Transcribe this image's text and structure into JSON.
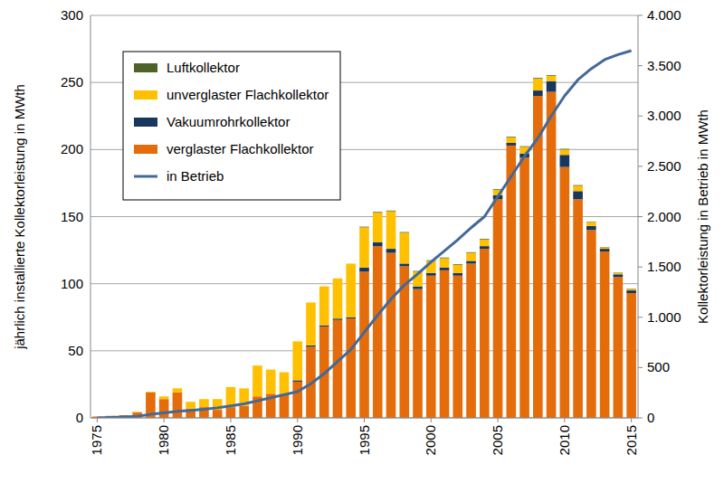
{
  "chart_data": {
    "type": "bar",
    "stacked": true,
    "grid": true,
    "legend": "upper left",
    "y_label": "jährlich installierte Kollektorleistung in MWth",
    "y2_label": "Kollektorleistung in Betrieb in MWth",
    "categories": [
      "1975",
      null,
      null,
      null,
      null,
      "1980",
      null,
      null,
      null,
      null,
      "1985",
      null,
      null,
      null,
      null,
      "1990",
      null,
      null,
      null,
      null,
      "1995",
      null,
      null,
      null,
      null,
      "2000",
      null,
      null,
      null,
      null,
      "2005",
      null,
      null,
      null,
      null,
      "2010",
      null,
      null,
      null,
      null,
      "2015"
    ],
    "ylim": [
      0,
      300
    ],
    "yticks": [
      0,
      50,
      100,
      150,
      200,
      250,
      300
    ],
    "y2lim": [
      0,
      4000
    ],
    "y2ticks": [
      0,
      500,
      {
        "value": 1000,
        "label": "1.000"
      },
      {
        "value": 1500,
        "label": "1.500"
      },
      {
        "value": 2000,
        "label": "2.000"
      },
      {
        "value": 2500,
        "label": "2.500"
      },
      {
        "value": 3000,
        "label": "3.000"
      },
      {
        "value": 3500,
        "label": "3.500"
      },
      {
        "value": 4000,
        "label": "4.000"
      }
    ],
    "series": [
      {
        "name": "verglaster Flachkollektor",
        "color": "#e46c0a",
        "type": "bar",
        "values": [
          1,
          1.5,
          2,
          4,
          19,
          14,
          19,
          7,
          8,
          6,
          8,
          9,
          16,
          18,
          18,
          27,
          53,
          68,
          73,
          74,
          109,
          128,
          123,
          113,
          96,
          106,
          110,
          106,
          115,
          126,
          163,
          203,
          194,
          240,
          243,
          187,
          163,
          140,
          124,
          105,
          93
        ]
      },
      {
        "name": "Vakuumrohrkollektor",
        "color": "#17375e",
        "type": "bar",
        "values": [
          0,
          0,
          0,
          0,
          0,
          0,
          0,
          0,
          0,
          0,
          0,
          0,
          0,
          0,
          0,
          1,
          1,
          1,
          1,
          1,
          3,
          3,
          3,
          2,
          2,
          2,
          2,
          2,
          2,
          2,
          3,
          2,
          3,
          4,
          8,
          9,
          6,
          3,
          2,
          2,
          2
        ]
      },
      {
        "name": "unverglaster Flachkollektor",
        "color": "#ffc000",
        "type": "bar",
        "values": [
          0,
          0,
          0,
          0.5,
          0.5,
          2,
          3,
          5,
          6,
          8,
          15,
          13,
          23,
          18,
          16,
          29,
          32,
          29,
          30,
          40,
          30,
          22,
          28,
          23,
          11,
          9,
          7,
          6,
          6,
          5,
          4,
          4,
          5,
          9,
          4,
          4,
          4,
          3,
          1,
          1,
          1
        ]
      },
      {
        "name": "Luftkollektor",
        "color": "#4f6228",
        "type": "bar",
        "values": [
          0,
          0,
          0,
          0,
          0,
          0,
          0,
          0,
          0,
          0,
          0,
          0,
          0,
          0,
          0,
          0,
          0,
          0,
          0,
          0,
          0.5,
          0.5,
          0.5,
          0.5,
          0.5,
          0.5,
          0.5,
          0.5,
          0.5,
          0.5,
          0.5,
          0.5,
          0.5,
          0.5,
          0.5,
          0.5,
          0.5,
          0.3,
          0.3,
          0.3,
          0.3
        ]
      },
      {
        "name": "in Betrieb",
        "color": "#41699a",
        "type": "line",
        "axis": "y2",
        "values": [
          0,
          5,
          10,
          15,
          35,
          50,
          65,
          75,
          85,
          100,
          120,
          140,
          170,
          200,
          230,
          260,
          340,
          440,
          560,
          680,
          850,
          1020,
          1180,
          1320,
          1430,
          1550,
          1660,
          1770,
          1890,
          2000,
          2200,
          2400,
          2600,
          2780,
          3000,
          3200,
          3360,
          3470,
          3560,
          3610,
          3650
        ]
      }
    ]
  }
}
